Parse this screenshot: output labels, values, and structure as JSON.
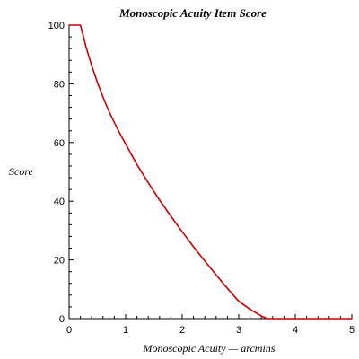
{
  "chart_data": {
    "type": "line",
    "title": "Monoscopic Acuity Item Score",
    "xlabel": "Monoscopic Acuity — arcmins",
    "ylabel": "Score",
    "xlim": [
      0,
      5
    ],
    "ylim": [
      0,
      100
    ],
    "x_ticks": [
      0,
      1,
      2,
      3,
      4,
      5
    ],
    "y_ticks": [
      0,
      20,
      40,
      60,
      80,
      100
    ],
    "x_tick_labels": [
      "0",
      "1",
      "2",
      "3",
      "4",
      "5"
    ],
    "y_tick_labels": [
      "0",
      "20",
      "40",
      "60",
      "80",
      "100"
    ],
    "grid": false,
    "series_color": "#cc0000",
    "series": [
      {
        "x": [
          0,
          0.2,
          0.25,
          0.3,
          0.4,
          0.5,
          0.6,
          0.7,
          0.8,
          0.9,
          1.0,
          1.2,
          1.4,
          1.6,
          1.8,
          2.0,
          2.2,
          2.4,
          2.6,
          2.8,
          3.0,
          3.2,
          3.4,
          3.5,
          3.7,
          4.0,
          4.5,
          5.0
        ],
        "y": [
          100,
          100,
          96.4,
          92.5,
          86.2,
          80.5,
          75.5,
          70.8,
          66.8,
          63,
          59.5,
          52.5,
          46.3,
          40.4,
          34.9,
          29.6,
          24.5,
          19.6,
          14.9,
          10.3,
          5.9,
          3.2,
          0.9,
          0,
          0,
          0,
          0,
          0
        ]
      }
    ]
  }
}
